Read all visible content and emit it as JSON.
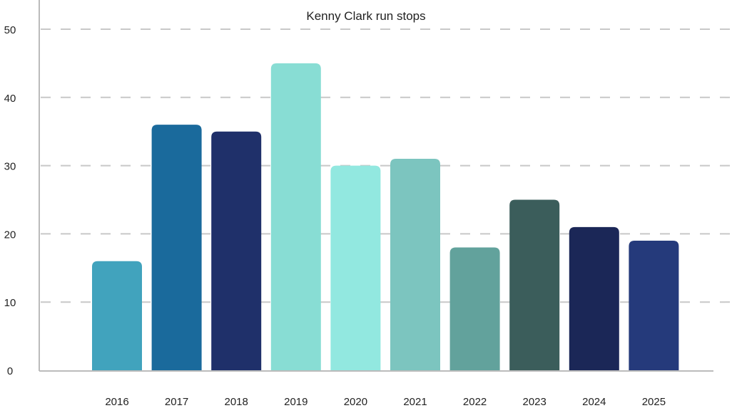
{
  "chart_data": {
    "type": "bar",
    "title": "Kenny Clark run stops",
    "xlabel": "",
    "ylabel": "",
    "categories": [
      "2016",
      "2017",
      "2018",
      "2019",
      "2020",
      "2021",
      "2022",
      "2023",
      "2024",
      "2025"
    ],
    "values": [
      16,
      36,
      35,
      45,
      30,
      31,
      18,
      25,
      21,
      19
    ],
    "colors": [
      "#41a3bd",
      "#1a6a9c",
      "#1f306a",
      "#88ddd4",
      "#92e8e0",
      "#7cc5bf",
      "#62a29c",
      "#3b5d5b",
      "#1b2757",
      "#253a7b"
    ],
    "ylim": [
      0,
      50
    ],
    "yticks": [
      0,
      10,
      20,
      30,
      40,
      50
    ],
    "grid": true,
    "legend": "none"
  }
}
